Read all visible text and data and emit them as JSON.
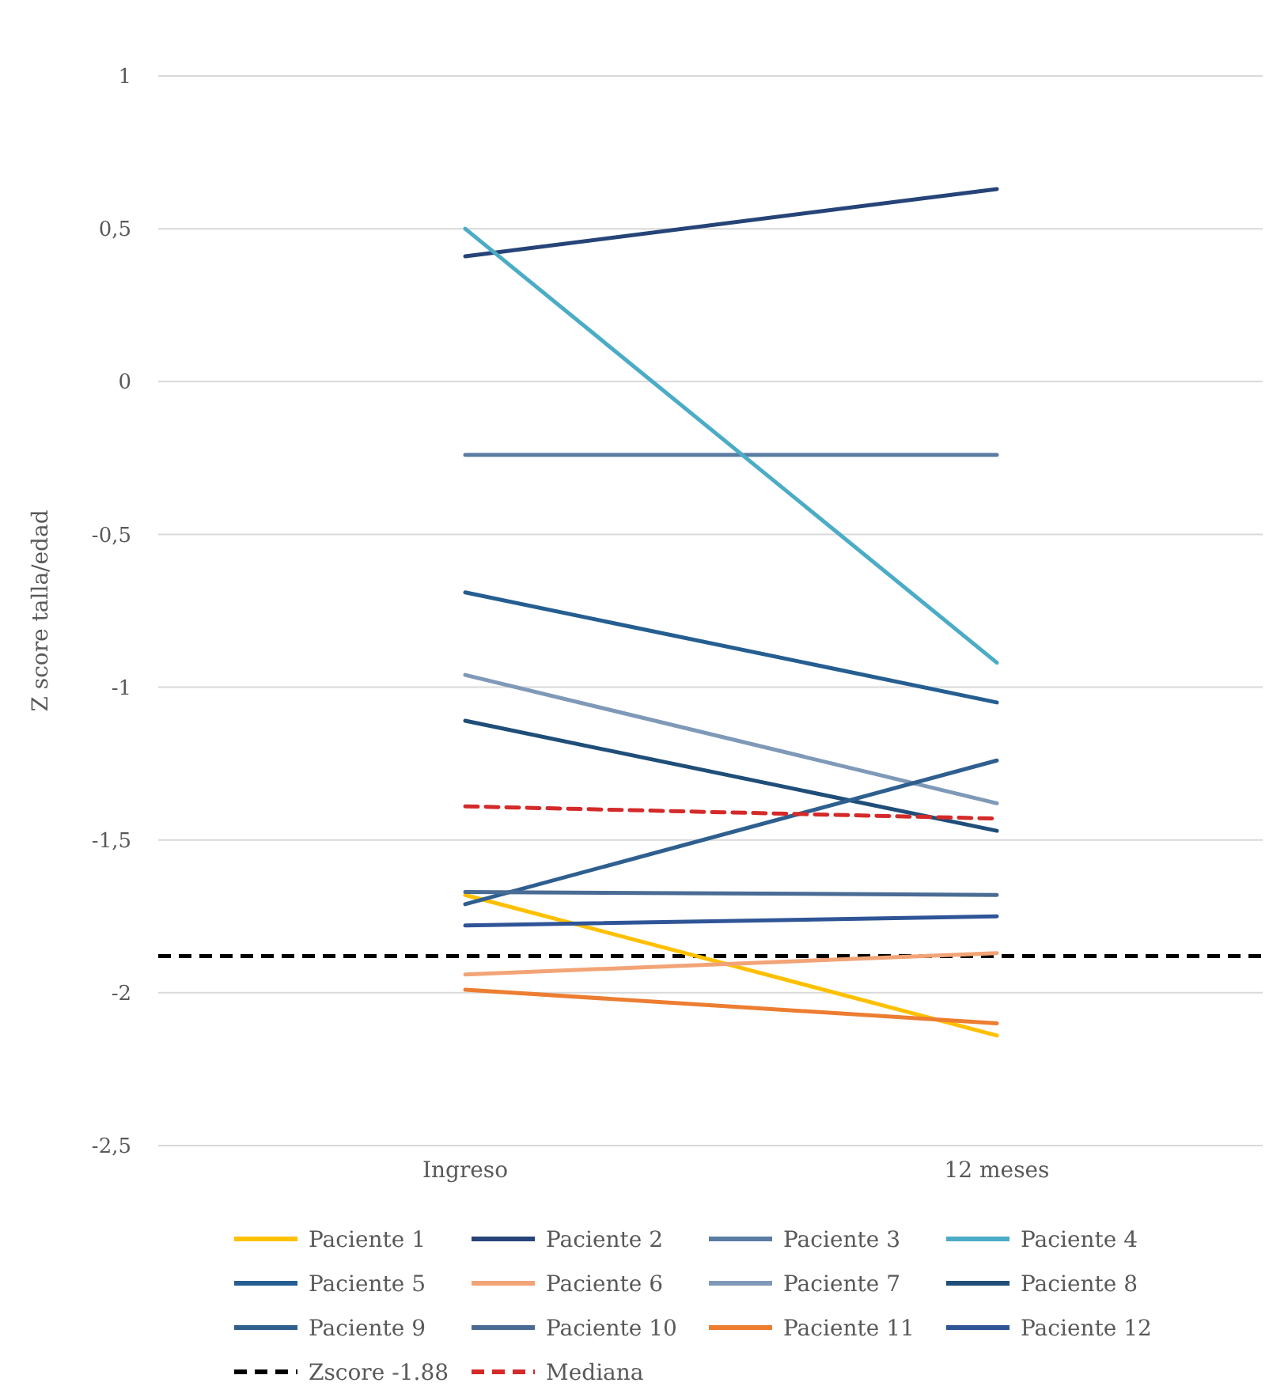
{
  "chart_data": {
    "type": "line",
    "ylabel": "Z score talla/edad",
    "categories": [
      "Ingreso",
      "12 meses"
    ],
    "ylim": [
      -2.5,
      1
    ],
    "yticks": [
      {
        "value": -2.5,
        "label": "-2,5"
      },
      {
        "value": -2,
        "label": "-2"
      },
      {
        "value": -1.5,
        "label": "-1,5"
      },
      {
        "value": -1,
        "label": "-1"
      },
      {
        "value": -0.5,
        "label": "-0,5"
      },
      {
        "value": 0,
        "label": "0"
      },
      {
        "value": 0.5,
        "label": "0,5"
      },
      {
        "value": 1,
        "label": "1"
      }
    ],
    "grid": "y",
    "legend": "bottom",
    "marker": "none",
    "series": [
      {
        "name": "Paciente 1",
        "color": "#ffc000",
        "values": [
          -1.68,
          -2.14
        ]
      },
      {
        "name": "Paciente 2",
        "color": "#264478",
        "values": [
          0.41,
          0.63
        ]
      },
      {
        "name": "Paciente 3",
        "color": "#5b7ca3",
        "values": [
          -0.24,
          -0.24
        ]
      },
      {
        "name": "Paciente 4",
        "color": "#4bacc6",
        "values": [
          0.5,
          -0.92
        ]
      },
      {
        "name": "Paciente 5",
        "color": "#255e91",
        "values": [
          -0.69,
          -1.05
        ]
      },
      {
        "name": "Paciente 6",
        "color": "#f2a477",
        "values": [
          -1.94,
          -1.87
        ]
      },
      {
        "name": "Paciente 7",
        "color": "#7f99b8",
        "values": [
          -0.96,
          -1.38
        ]
      },
      {
        "name": "Paciente 8",
        "color": "#1f4e79",
        "values": [
          -1.11,
          -1.47
        ]
      },
      {
        "name": "Paciente 9",
        "color": "#2e5f8f",
        "values": [
          -1.71,
          -1.24
        ]
      },
      {
        "name": "Paciente 10",
        "color": "#4a6c94",
        "values": [
          -1.67,
          -1.68
        ]
      },
      {
        "name": "Paciente 11",
        "color": "#ed7d31",
        "values": [
          -1.99,
          -2.1
        ]
      },
      {
        "name": "Paciente 12",
        "color": "#2f5597",
        "values": [
          -1.78,
          -1.75
        ]
      },
      {
        "name": "Mediana",
        "color": "#d42a2a",
        "line_style": "dashed",
        "values": [
          -1.39,
          -1.43
        ]
      }
    ],
    "ref_lines": [
      {
        "axis": "y",
        "value": -1.88,
        "label": "Zscore -1.88",
        "color": "#000000",
        "line_style": "dashed"
      }
    ]
  }
}
